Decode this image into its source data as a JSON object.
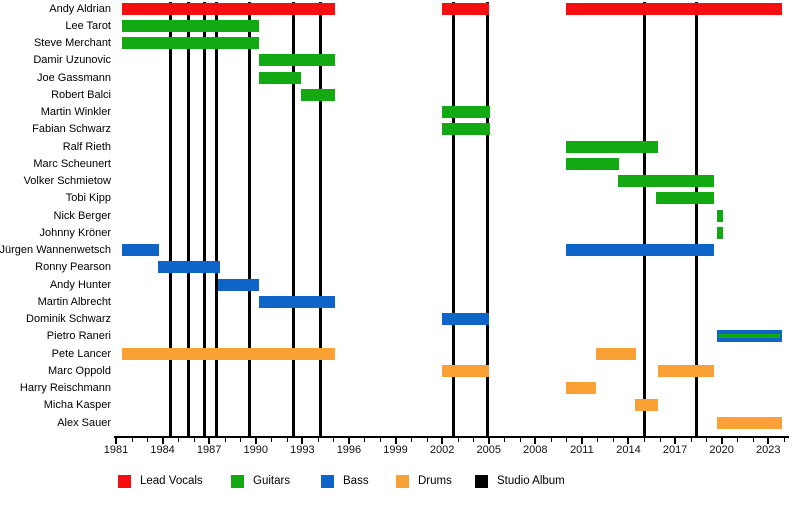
{
  "chart_data": {
    "type": "bar",
    "subtype": "gantt-timeline",
    "title": "",
    "orientation": "horizontal",
    "x_axis": {
      "start": 1981,
      "end": 2024.2,
      "major_tick_years": [
        1981,
        1984,
        1987,
        1990,
        1993,
        1996,
        1999,
        2002,
        2005,
        2008,
        2011,
        2014,
        2017,
        2020,
        2023
      ],
      "minor_tick_interval": 1
    },
    "legend": [
      {
        "label": "Lead Vocals",
        "color": "#f50f0f"
      },
      {
        "label": "Guitars",
        "color": "#12a912"
      },
      {
        "label": "Bass",
        "color": "#0f64c8"
      },
      {
        "label": "Drums",
        "color": "#f9a134"
      },
      {
        "label": "Studio Album",
        "color": "#000000"
      }
    ],
    "studio_album_years": [
      1984.5,
      1985.7,
      1986.7,
      1987.5,
      1989.6,
      1992.4,
      1994.2,
      2002.7,
      2004.9,
      2015.0,
      2018.4
    ],
    "members": [
      {
        "name": "Andy Aldrian",
        "bars": [
          {
            "role": "Lead Vocals",
            "start": 1981.4,
            "end": 1995.1
          },
          {
            "role": "Lead Vocals",
            "start": 2002.0,
            "end": 2005.0
          },
          {
            "role": "Lead Vocals",
            "start": 2010.0,
            "end": 2023.9
          }
        ]
      },
      {
        "name": "Lee Tarot",
        "bars": [
          {
            "role": "Guitars",
            "start": 1981.4,
            "end": 1990.2
          }
        ]
      },
      {
        "name": "Steve Merchant",
        "bars": [
          {
            "role": "Guitars",
            "start": 1981.4,
            "end": 1990.2
          }
        ]
      },
      {
        "name": "Damir Uzunovic",
        "bars": [
          {
            "role": "Guitars",
            "start": 1990.2,
            "end": 1995.1
          }
        ]
      },
      {
        "name": "Joe Gassmann",
        "bars": [
          {
            "role": "Guitars",
            "start": 1990.2,
            "end": 1992.9
          }
        ]
      },
      {
        "name": "Robert Balci",
        "bars": [
          {
            "role": "Guitars",
            "start": 1992.9,
            "end": 1995.1
          }
        ]
      },
      {
        "name": "Martin Winkler",
        "bars": [
          {
            "role": "Guitars",
            "start": 2002.0,
            "end": 2005.1
          }
        ]
      },
      {
        "name": "Fabian Schwarz",
        "bars": [
          {
            "role": "Guitars",
            "start": 2002.0,
            "end": 2005.1
          }
        ]
      },
      {
        "name": "Ralf Rieth",
        "bars": [
          {
            "role": "Guitars",
            "start": 2010.0,
            "end": 2015.9
          }
        ]
      },
      {
        "name": "Marc Scheunert",
        "bars": [
          {
            "role": "Guitars",
            "start": 2010.0,
            "end": 2013.4
          }
        ]
      },
      {
        "name": "Volker Schmietow",
        "bars": [
          {
            "role": "Guitars",
            "start": 2013.3,
            "end": 2019.5
          }
        ]
      },
      {
        "name": "Tobi Kipp",
        "bars": [
          {
            "role": "Guitars",
            "start": 2015.8,
            "end": 2019.5
          }
        ]
      },
      {
        "name": "Nick Berger",
        "bars": [
          {
            "role": "Guitars",
            "start": 2019.7,
            "end": 2020.1
          }
        ]
      },
      {
        "name": "Johnny Kröner",
        "bars": [
          {
            "role": "Guitars",
            "start": 2019.7,
            "end": 2020.1
          }
        ]
      },
      {
        "name": "Jürgen Wannenwetsch",
        "bars": [
          {
            "role": "Bass",
            "start": 1981.4,
            "end": 1983.8
          },
          {
            "role": "Bass",
            "start": 2010.0,
            "end": 2019.5
          }
        ]
      },
      {
        "name": "Ronny Pearson",
        "bars": [
          {
            "role": "Bass",
            "start": 1983.7,
            "end": 1987.7
          }
        ]
      },
      {
        "name": "Andy Hunter",
        "bars": [
          {
            "role": "Bass",
            "start": 1987.6,
            "end": 1990.2
          }
        ]
      },
      {
        "name": "Martin Albrecht",
        "bars": [
          {
            "role": "Bass",
            "start": 1990.2,
            "end": 1995.1
          }
        ]
      },
      {
        "name": "Dominik Schwarz",
        "bars": [
          {
            "role": "Bass",
            "start": 2002.0,
            "end": 2005.0
          }
        ]
      },
      {
        "name": "Pietro Raneri",
        "bars": [
          {
            "role": "Bass",
            "stripe_role": "Guitars",
            "start": 2019.7,
            "end": 2023.9
          }
        ]
      },
      {
        "name": "Pete Lancer",
        "bars": [
          {
            "role": "Drums",
            "start": 1981.4,
            "end": 1995.1
          },
          {
            "role": "Drums",
            "start": 2011.9,
            "end": 2014.5
          }
        ]
      },
      {
        "name": "Marc Oppold",
        "bars": [
          {
            "role": "Drums",
            "start": 2002.0,
            "end": 2005.0
          },
          {
            "role": "Drums",
            "start": 2015.9,
            "end": 2019.5
          }
        ]
      },
      {
        "name": "Harry Reischmann",
        "bars": [
          {
            "role": "Drums",
            "start": 2010.0,
            "end": 2011.9
          }
        ]
      },
      {
        "name": "Micha Kasper",
        "bars": [
          {
            "role": "Drums",
            "start": 2014.4,
            "end": 2015.9
          }
        ]
      },
      {
        "name": "Alex Sauer",
        "bars": [
          {
            "role": "Drums",
            "start": 2019.7,
            "end": 2023.9
          }
        ]
      }
    ]
  }
}
